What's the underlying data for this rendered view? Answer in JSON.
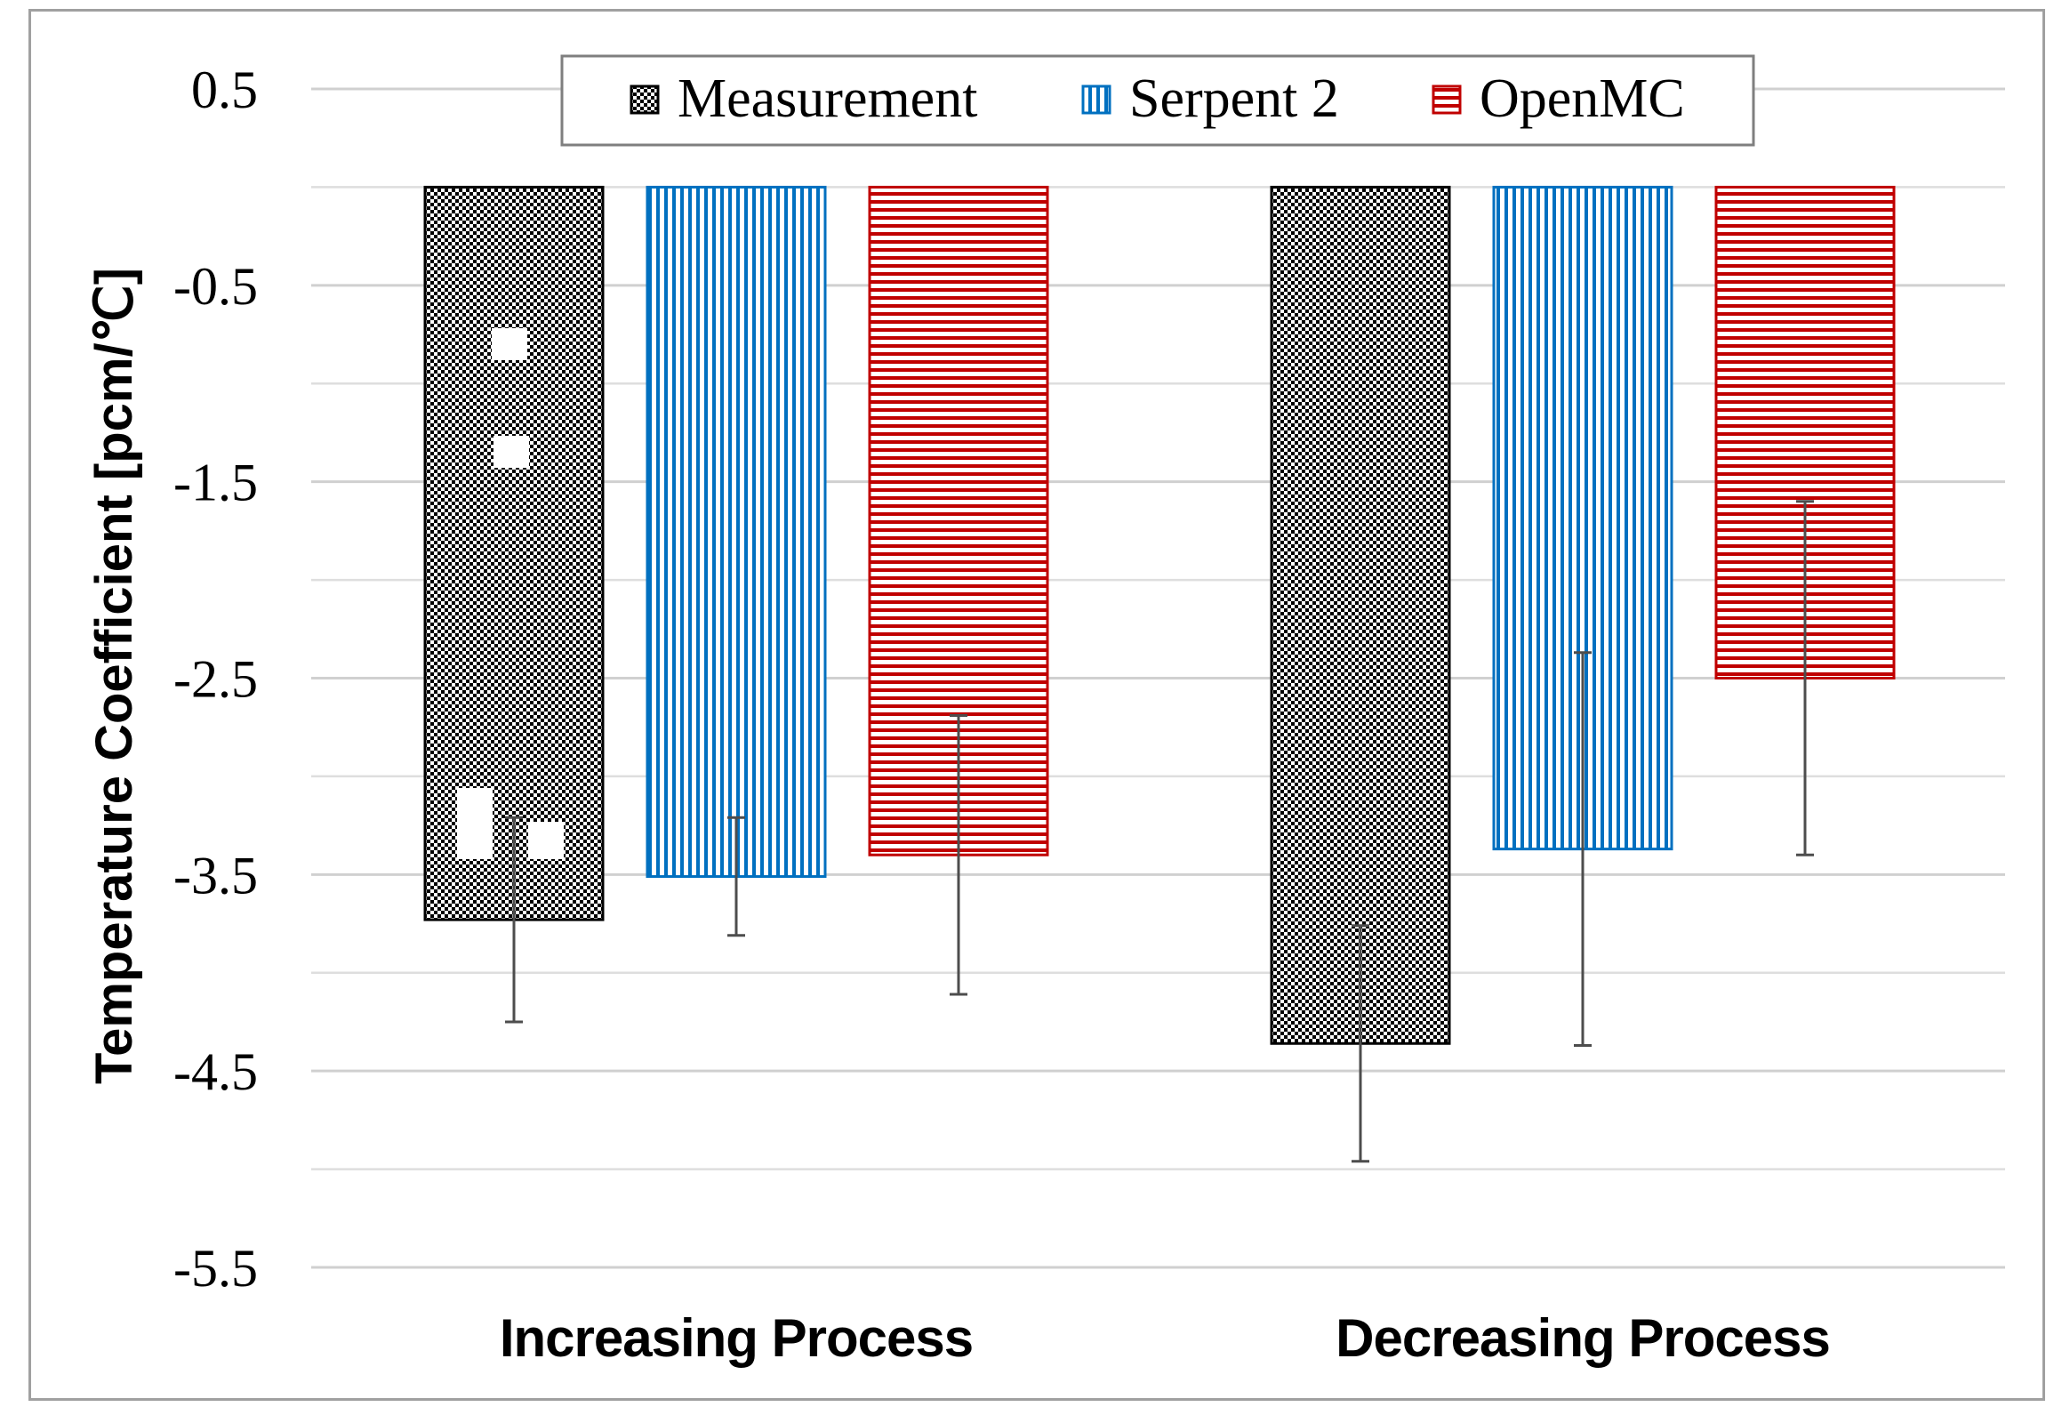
{
  "chart_data": {
    "type": "bar",
    "title": "",
    "xlabel": "",
    "ylabel": "Temperature Coefficient [pcm/℃]",
    "ylim": [
      -5.5,
      0.5
    ],
    "yticks": [
      0.5,
      -0.5,
      -1.5,
      -2.5,
      -3.5,
      -4.5,
      -5.5
    ],
    "ytick_labels": [
      "0.5",
      "-0.5",
      "-1.5",
      "-2.5",
      "-3.5",
      "-4.5",
      "-5.5"
    ],
    "grid": true,
    "legend_position": "top-center",
    "categories": [
      "Increasing Process",
      "Decreasing Process"
    ],
    "series": [
      {
        "name": "Measurement",
        "values": [
          -3.73,
          -4.36
        ],
        "errors": [
          0.52,
          0.6
        ],
        "color": "#000000",
        "pattern": "checker"
      },
      {
        "name": "Serpent 2",
        "values": [
          -3.51,
          -3.37
        ],
        "errors": [
          0.3,
          1.0
        ],
        "color": "#0070C0",
        "pattern": "vertical"
      },
      {
        "name": "OpenMC",
        "values": [
          -3.4,
          -2.5
        ],
        "errors": [
          0.71,
          0.9
        ],
        "color": "#C00000",
        "pattern": "horizontal"
      }
    ]
  }
}
